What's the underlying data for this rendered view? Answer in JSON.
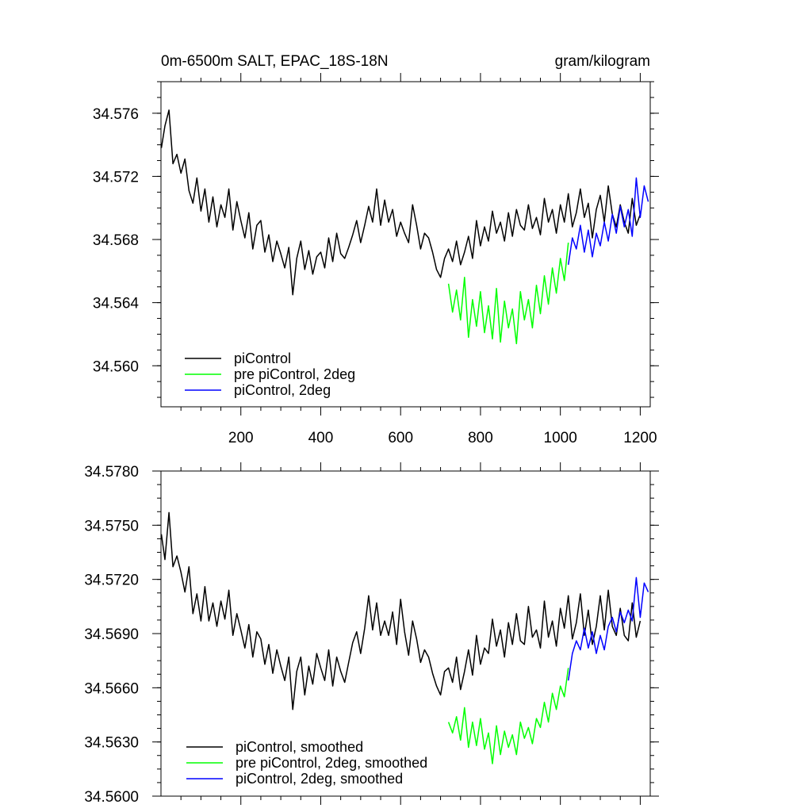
{
  "chart_data": [
    {
      "type": "line",
      "title": "0m-6500m SALT, EPAC_18S-18N",
      "units": "gram/kilogram",
      "xlim": [
        0,
        1225
      ],
      "ylim": [
        34.5574,
        34.578
      ],
      "x_ticks": [
        200,
        400,
        600,
        800,
        1000,
        1200
      ],
      "x_tick_labels": [
        "200",
        "400",
        "600",
        "800",
        "1000",
        "1200"
      ],
      "y_ticks": [
        34.56,
        34.564,
        34.568,
        34.572,
        34.576
      ],
      "y_tick_labels": [
        "34.560",
        "34.564",
        "34.568",
        "34.572",
        "34.576"
      ],
      "legend_position": "bottom-left",
      "series": [
        {
          "name": "piControl",
          "color": "#000000",
          "x": [
            1,
            10,
            20,
            30,
            40,
            50,
            60,
            70,
            80,
            90,
            100,
            110,
            120,
            130,
            140,
            150,
            160,
            170,
            180,
            190,
            200,
            210,
            220,
            230,
            240,
            250,
            260,
            270,
            280,
            290,
            300,
            310,
            320,
            330,
            340,
            350,
            360,
            370,
            380,
            390,
            400,
            410,
            420,
            430,
            440,
            450,
            460,
            470,
            480,
            490,
            500,
            510,
            520,
            530,
            540,
            550,
            560,
            570,
            580,
            590,
            600,
            610,
            620,
            630,
            640,
            650,
            660,
            670,
            680,
            690,
            700,
            710,
            720,
            730,
            740,
            750,
            760,
            770,
            780,
            790,
            800,
            810,
            820,
            830,
            840,
            850,
            860,
            870,
            880,
            890,
            900,
            910,
            920,
            930,
            940,
            950,
            960,
            970,
            980,
            990,
            1000,
            1010,
            1020,
            1030,
            1040,
            1050,
            1060,
            1070,
            1080,
            1090,
            1100,
            1110,
            1120,
            1130,
            1140,
            1150,
            1160,
            1170,
            1180,
            1190,
            1200
          ],
          "values": [
            34.5738,
            34.5752,
            34.5762,
            34.5728,
            34.5734,
            34.5722,
            34.5731,
            34.5711,
            34.5703,
            34.5719,
            34.5698,
            34.5712,
            34.5691,
            34.5707,
            34.5688,
            34.5702,
            34.5694,
            34.5712,
            34.5686,
            34.5704,
            34.5692,
            34.5681,
            34.5697,
            34.5674,
            34.5689,
            34.5692,
            34.5672,
            34.5683,
            34.5666,
            34.5679,
            34.5671,
            34.5662,
            34.5675,
            34.5645,
            34.5668,
            34.5679,
            34.5661,
            34.5673,
            34.5658,
            34.5669,
            34.5672,
            34.5662,
            34.5681,
            34.5666,
            34.5684,
            34.5671,
            34.5668,
            34.5675,
            34.5683,
            34.5692,
            34.5678,
            34.5689,
            34.5701,
            34.5691,
            34.5712,
            34.5689,
            34.5705,
            34.5691,
            34.5699,
            34.5682,
            34.5691,
            34.5684,
            34.5678,
            34.5702,
            34.5689,
            34.5674,
            34.5684,
            34.5681,
            34.5672,
            34.5661,
            34.5656,
            34.5668,
            34.5674,
            34.5666,
            34.5679,
            34.5664,
            34.5672,
            34.5682,
            34.5668,
            34.5692,
            34.5676,
            34.5688,
            34.5679,
            34.5698,
            34.5684,
            34.5691,
            34.5679,
            34.5697,
            34.5682,
            34.5699,
            34.5689,
            34.5686,
            34.5702,
            34.5687,
            34.5694,
            34.5683,
            34.5706,
            34.5691,
            34.5699,
            34.5684,
            34.5702,
            34.5691,
            34.5709,
            34.5688,
            34.5697,
            34.5712,
            34.5694,
            34.5703,
            34.5681,
            34.5699,
            34.5708,
            34.5691,
            34.5714,
            34.5696,
            34.5688,
            34.5702,
            34.5691,
            34.5684,
            34.5706,
            34.5689,
            34.5696
          ]
        },
        {
          "name": "pre piControl, 2deg",
          "color": "#00ff00",
          "x": [
            720,
            730,
            740,
            750,
            760,
            770,
            780,
            790,
            800,
            810,
            820,
            830,
            840,
            850,
            860,
            870,
            880,
            890,
            900,
            910,
            920,
            930,
            940,
            950,
            960,
            970,
            980,
            990,
            1000,
            1010,
            1020
          ],
          "values": [
            34.5652,
            34.5634,
            34.5648,
            34.5629,
            34.5656,
            34.5618,
            34.5642,
            34.5625,
            34.5647,
            34.5621,
            34.5638,
            34.5617,
            34.5649,
            34.5615,
            34.5641,
            34.5624,
            34.5636,
            34.5614,
            34.5647,
            34.5629,
            34.5642,
            34.5624,
            34.5651,
            34.5633,
            34.5657,
            34.5639,
            34.5662,
            34.5646,
            34.5668,
            34.5654,
            34.5678
          ]
        },
        {
          "name": "piControl, 2deg",
          "color": "#0000ff",
          "x": [
            1020,
            1030,
            1040,
            1050,
            1060,
            1070,
            1080,
            1090,
            1100,
            1110,
            1120,
            1130,
            1140,
            1150,
            1160,
            1170,
            1180,
            1190,
            1200,
            1210,
            1220
          ],
          "values": [
            34.5664,
            34.5681,
            34.5674,
            34.5689,
            34.5672,
            34.5686,
            34.5669,
            34.5684,
            34.5676,
            34.5691,
            34.5679,
            34.5696,
            34.5684,
            34.5701,
            34.5688,
            34.5699,
            34.5682,
            34.5719,
            34.5694,
            34.5714,
            34.5704
          ]
        }
      ]
    },
    {
      "type": "line",
      "xlim": [
        0,
        1225
      ],
      "ylim": [
        34.56,
        34.578
      ],
      "y_ticks": [
        34.56,
        34.563,
        34.566,
        34.569,
        34.572,
        34.575,
        34.578
      ],
      "y_tick_labels": [
        "34.5600",
        "34.5630",
        "34.5660",
        "34.5690",
        "34.5720",
        "34.5750",
        "34.5780"
      ],
      "legend_position": "bottom-left",
      "series": [
        {
          "name": "piControl, smoothed",
          "color": "#000000",
          "x": [
            1,
            10,
            20,
            30,
            40,
            50,
            60,
            70,
            80,
            90,
            100,
            110,
            120,
            130,
            140,
            150,
            160,
            170,
            180,
            190,
            200,
            210,
            220,
            230,
            240,
            250,
            260,
            270,
            280,
            290,
            300,
            310,
            320,
            330,
            340,
            350,
            360,
            370,
            380,
            390,
            400,
            410,
            420,
            430,
            440,
            450,
            460,
            470,
            480,
            490,
            500,
            510,
            520,
            530,
            540,
            550,
            560,
            570,
            580,
            590,
            600,
            610,
            620,
            630,
            640,
            650,
            660,
            670,
            680,
            690,
            700,
            710,
            720,
            730,
            740,
            750,
            760,
            770,
            780,
            790,
            800,
            810,
            820,
            830,
            840,
            850,
            860,
            870,
            880,
            890,
            900,
            910,
            920,
            930,
            940,
            950,
            960,
            970,
            980,
            990,
            1000,
            1010,
            1020,
            1030,
            1040,
            1050,
            1060,
            1070,
            1080,
            1090,
            1100,
            1110,
            1120,
            1130,
            1140,
            1150,
            1160,
            1170,
            1180,
            1190,
            1200
          ],
          "values": [
            34.5745,
            34.5731,
            34.5757,
            34.5727,
            34.5733,
            34.5724,
            34.5713,
            34.5727,
            34.5701,
            34.5712,
            34.5697,
            34.5716,
            34.5697,
            34.5707,
            34.5694,
            34.5708,
            34.5698,
            34.5714,
            34.5689,
            34.5701,
            34.5692,
            34.5682,
            34.5695,
            34.5677,
            34.5691,
            34.5687,
            34.5673,
            34.5684,
            34.5668,
            34.5681,
            34.5672,
            34.5664,
            34.5677,
            34.5648,
            34.5669,
            34.5677,
            34.5656,
            34.5672,
            34.5662,
            34.5679,
            34.5671,
            34.5664,
            34.5681,
            34.5661,
            34.5677,
            34.5669,
            34.5663,
            34.5674,
            34.5685,
            34.5691,
            34.5679,
            34.5693,
            34.5711,
            34.5692,
            34.5707,
            34.5689,
            34.5697,
            34.5689,
            34.5702,
            34.5684,
            34.5709,
            34.5691,
            34.5678,
            34.5697,
            34.5687,
            34.5674,
            34.5681,
            34.5677,
            34.5668,
            34.5661,
            34.5656,
            34.5669,
            34.5671,
            34.5663,
            34.5677,
            34.5659,
            34.5669,
            34.5681,
            34.5667,
            34.5689,
            34.5673,
            34.5682,
            34.5679,
            34.5698,
            34.5683,
            34.5692,
            34.5677,
            34.5696,
            34.5684,
            34.5701,
            34.5686,
            34.5684,
            34.5705,
            34.5688,
            34.5692,
            34.5682,
            34.5708,
            34.5688,
            34.5697,
            34.5683,
            34.5704,
            34.5693,
            34.5711,
            34.5687,
            34.5696,
            34.5712,
            34.5689,
            34.5703,
            34.5684,
            34.5694,
            34.5711,
            34.5692,
            34.5714,
            34.5694,
            34.5689,
            34.5704,
            34.5689,
            34.5686,
            34.5707,
            34.5688,
            34.5697
          ]
        },
        {
          "name": "pre piControl, 2deg, smoothed",
          "color": "#00ff00",
          "x": [
            720,
            730,
            740,
            750,
            760,
            770,
            780,
            790,
            800,
            810,
            820,
            830,
            840,
            850,
            860,
            870,
            880,
            890,
            900,
            910,
            920,
            930,
            940,
            950,
            960,
            970,
            980,
            990,
            1000,
            1010,
            1020
          ],
          "values": [
            34.5641,
            34.5635,
            34.5644,
            34.5631,
            34.5649,
            34.5627,
            34.5641,
            34.5628,
            34.5643,
            34.5626,
            34.5635,
            34.5618,
            34.5639,
            34.5623,
            34.5636,
            34.5627,
            34.5634,
            34.5623,
            34.5641,
            34.5632,
            34.5638,
            34.5629,
            34.5643,
            34.5638,
            34.5652,
            34.5641,
            34.5657,
            34.5648,
            34.5661,
            34.5655,
            34.5671
          ]
        },
        {
          "name": "piControl, 2deg, smoothed",
          "color": "#0000ff",
          "x": [
            1020,
            1030,
            1040,
            1050,
            1060,
            1070,
            1080,
            1090,
            1100,
            1110,
            1120,
            1130,
            1140,
            1150,
            1160,
            1170,
            1180,
            1190,
            1200,
            1210,
            1220
          ],
          "values": [
            34.5664,
            34.5679,
            34.5686,
            34.5681,
            34.5693,
            34.5682,
            34.5691,
            34.5679,
            34.5689,
            34.5681,
            34.5694,
            34.5699,
            34.5691,
            34.5702,
            34.5696,
            34.5703,
            34.5697,
            34.5721,
            34.5699,
            34.5718,
            34.5713
          ]
        }
      ]
    }
  ]
}
